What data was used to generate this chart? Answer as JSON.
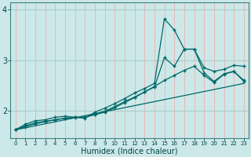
{
  "xlabel": "Humidex (Indice chaleur)",
  "background_color": "#cce8e8",
  "grid_color_h": "#aacccc",
  "grid_color_v": "#e8b8b8",
  "line_color": "#006868",
  "xlim": [
    -0.5,
    23.5
  ],
  "ylim": [
    1.45,
    4.15
  ],
  "xticks": [
    0,
    1,
    2,
    3,
    4,
    5,
    6,
    7,
    8,
    9,
    10,
    11,
    12,
    13,
    14,
    15,
    16,
    17,
    18,
    19,
    20,
    21,
    22,
    23
  ],
  "yticks": [
    2,
    3,
    4
  ],
  "line1_x": [
    0,
    1,
    2,
    3,
    4,
    5,
    6,
    7,
    8,
    9,
    10,
    11,
    12,
    13,
    14,
    15,
    16,
    17,
    18,
    19,
    20,
    21,
    22,
    23
  ],
  "line1_y": [
    1.62,
    1.73,
    1.8,
    1.82,
    1.87,
    1.89,
    1.87,
    1.85,
    1.97,
    2.05,
    2.14,
    2.24,
    2.35,
    2.44,
    2.54,
    3.82,
    3.6,
    3.22,
    3.22,
    2.85,
    2.78,
    2.82,
    2.9,
    2.88
  ],
  "line2_x": [
    0,
    1,
    2,
    3,
    4,
    5,
    6,
    7,
    8,
    9,
    10,
    11,
    12,
    13,
    14,
    15,
    16,
    17,
    18,
    19,
    20,
    21,
    22,
    23
  ],
  "line2_y": [
    1.62,
    1.7,
    1.76,
    1.79,
    1.82,
    1.85,
    1.86,
    1.87,
    1.93,
    1.99,
    2.08,
    2.18,
    2.27,
    2.37,
    2.47,
    3.05,
    2.88,
    3.22,
    3.22,
    2.75,
    2.58,
    2.73,
    2.78,
    2.58
  ],
  "line3_x": [
    0,
    1,
    2,
    3,
    4,
    5,
    6,
    7,
    8,
    9,
    10,
    11,
    12,
    13,
    14,
    15,
    16,
    17,
    18,
    19,
    20,
    21,
    22,
    23
  ],
  "line3_y": [
    1.62,
    1.68,
    1.74,
    1.78,
    1.82,
    1.85,
    1.87,
    1.87,
    1.92,
    1.97,
    2.06,
    2.16,
    2.26,
    2.37,
    2.48,
    2.6,
    2.7,
    2.8,
    2.88,
    2.7,
    2.56,
    2.72,
    2.78,
    2.6
  ],
  "line4_x": [
    0,
    1,
    2,
    3,
    4,
    5,
    6,
    7,
    8,
    9,
    10,
    11,
    12,
    13,
    14,
    15,
    16,
    17,
    18,
    19,
    20,
    21,
    22,
    23
  ],
  "line4_y": [
    1.62,
    1.66,
    1.7,
    1.74,
    1.78,
    1.82,
    1.86,
    1.9,
    1.94,
    1.98,
    2.02,
    2.06,
    2.1,
    2.14,
    2.18,
    2.22,
    2.26,
    2.3,
    2.34,
    2.38,
    2.42,
    2.46,
    2.5,
    2.54
  ]
}
